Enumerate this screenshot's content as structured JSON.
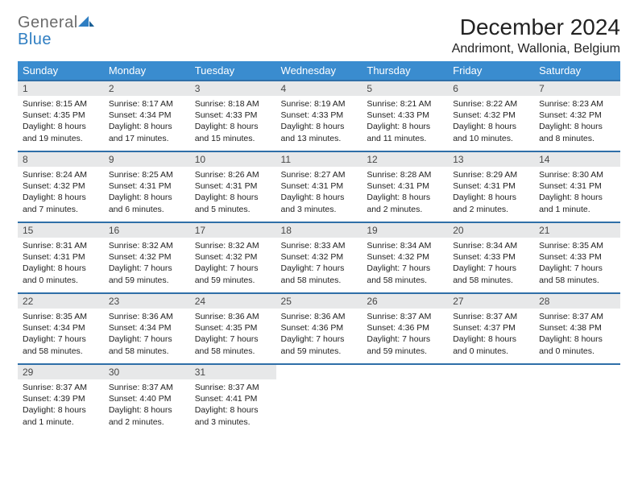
{
  "logo": {
    "general": "General",
    "blue": "Blue"
  },
  "title": "December 2024",
  "location": "Andrimont, Wallonia, Belgium",
  "colors": {
    "header_bg": "#3a8ccf",
    "header_text": "#ffffff",
    "daynum_bg": "#e7e8e9",
    "border": "#2f6fa8",
    "logo_gray": "#6b6b6b",
    "logo_blue": "#2f7ec2"
  },
  "weekdays": [
    "Sunday",
    "Monday",
    "Tuesday",
    "Wednesday",
    "Thursday",
    "Friday",
    "Saturday"
  ],
  "days": [
    {
      "n": "1",
      "sunrise": "Sunrise: 8:15 AM",
      "sunset": "Sunset: 4:35 PM",
      "daylight": "Daylight: 8 hours and 19 minutes."
    },
    {
      "n": "2",
      "sunrise": "Sunrise: 8:17 AM",
      "sunset": "Sunset: 4:34 PM",
      "daylight": "Daylight: 8 hours and 17 minutes."
    },
    {
      "n": "3",
      "sunrise": "Sunrise: 8:18 AM",
      "sunset": "Sunset: 4:33 PM",
      "daylight": "Daylight: 8 hours and 15 minutes."
    },
    {
      "n": "4",
      "sunrise": "Sunrise: 8:19 AM",
      "sunset": "Sunset: 4:33 PM",
      "daylight": "Daylight: 8 hours and 13 minutes."
    },
    {
      "n": "5",
      "sunrise": "Sunrise: 8:21 AM",
      "sunset": "Sunset: 4:33 PM",
      "daylight": "Daylight: 8 hours and 11 minutes."
    },
    {
      "n": "6",
      "sunrise": "Sunrise: 8:22 AM",
      "sunset": "Sunset: 4:32 PM",
      "daylight": "Daylight: 8 hours and 10 minutes."
    },
    {
      "n": "7",
      "sunrise": "Sunrise: 8:23 AM",
      "sunset": "Sunset: 4:32 PM",
      "daylight": "Daylight: 8 hours and 8 minutes."
    },
    {
      "n": "8",
      "sunrise": "Sunrise: 8:24 AM",
      "sunset": "Sunset: 4:32 PM",
      "daylight": "Daylight: 8 hours and 7 minutes."
    },
    {
      "n": "9",
      "sunrise": "Sunrise: 8:25 AM",
      "sunset": "Sunset: 4:31 PM",
      "daylight": "Daylight: 8 hours and 6 minutes."
    },
    {
      "n": "10",
      "sunrise": "Sunrise: 8:26 AM",
      "sunset": "Sunset: 4:31 PM",
      "daylight": "Daylight: 8 hours and 5 minutes."
    },
    {
      "n": "11",
      "sunrise": "Sunrise: 8:27 AM",
      "sunset": "Sunset: 4:31 PM",
      "daylight": "Daylight: 8 hours and 3 minutes."
    },
    {
      "n": "12",
      "sunrise": "Sunrise: 8:28 AM",
      "sunset": "Sunset: 4:31 PM",
      "daylight": "Daylight: 8 hours and 2 minutes."
    },
    {
      "n": "13",
      "sunrise": "Sunrise: 8:29 AM",
      "sunset": "Sunset: 4:31 PM",
      "daylight": "Daylight: 8 hours and 2 minutes."
    },
    {
      "n": "14",
      "sunrise": "Sunrise: 8:30 AM",
      "sunset": "Sunset: 4:31 PM",
      "daylight": "Daylight: 8 hours and 1 minute."
    },
    {
      "n": "15",
      "sunrise": "Sunrise: 8:31 AM",
      "sunset": "Sunset: 4:31 PM",
      "daylight": "Daylight: 8 hours and 0 minutes."
    },
    {
      "n": "16",
      "sunrise": "Sunrise: 8:32 AM",
      "sunset": "Sunset: 4:32 PM",
      "daylight": "Daylight: 7 hours and 59 minutes."
    },
    {
      "n": "17",
      "sunrise": "Sunrise: 8:32 AM",
      "sunset": "Sunset: 4:32 PM",
      "daylight": "Daylight: 7 hours and 59 minutes."
    },
    {
      "n": "18",
      "sunrise": "Sunrise: 8:33 AM",
      "sunset": "Sunset: 4:32 PM",
      "daylight": "Daylight: 7 hours and 58 minutes."
    },
    {
      "n": "19",
      "sunrise": "Sunrise: 8:34 AM",
      "sunset": "Sunset: 4:32 PM",
      "daylight": "Daylight: 7 hours and 58 minutes."
    },
    {
      "n": "20",
      "sunrise": "Sunrise: 8:34 AM",
      "sunset": "Sunset: 4:33 PM",
      "daylight": "Daylight: 7 hours and 58 minutes."
    },
    {
      "n": "21",
      "sunrise": "Sunrise: 8:35 AM",
      "sunset": "Sunset: 4:33 PM",
      "daylight": "Daylight: 7 hours and 58 minutes."
    },
    {
      "n": "22",
      "sunrise": "Sunrise: 8:35 AM",
      "sunset": "Sunset: 4:34 PM",
      "daylight": "Daylight: 7 hours and 58 minutes."
    },
    {
      "n": "23",
      "sunrise": "Sunrise: 8:36 AM",
      "sunset": "Sunset: 4:34 PM",
      "daylight": "Daylight: 7 hours and 58 minutes."
    },
    {
      "n": "24",
      "sunrise": "Sunrise: 8:36 AM",
      "sunset": "Sunset: 4:35 PM",
      "daylight": "Daylight: 7 hours and 58 minutes."
    },
    {
      "n": "25",
      "sunrise": "Sunrise: 8:36 AM",
      "sunset": "Sunset: 4:36 PM",
      "daylight": "Daylight: 7 hours and 59 minutes."
    },
    {
      "n": "26",
      "sunrise": "Sunrise: 8:37 AM",
      "sunset": "Sunset: 4:36 PM",
      "daylight": "Daylight: 7 hours and 59 minutes."
    },
    {
      "n": "27",
      "sunrise": "Sunrise: 8:37 AM",
      "sunset": "Sunset: 4:37 PM",
      "daylight": "Daylight: 8 hours and 0 minutes."
    },
    {
      "n": "28",
      "sunrise": "Sunrise: 8:37 AM",
      "sunset": "Sunset: 4:38 PM",
      "daylight": "Daylight: 8 hours and 0 minutes."
    },
    {
      "n": "29",
      "sunrise": "Sunrise: 8:37 AM",
      "sunset": "Sunset: 4:39 PM",
      "daylight": "Daylight: 8 hours and 1 minute."
    },
    {
      "n": "30",
      "sunrise": "Sunrise: 8:37 AM",
      "sunset": "Sunset: 4:40 PM",
      "daylight": "Daylight: 8 hours and 2 minutes."
    },
    {
      "n": "31",
      "sunrise": "Sunrise: 8:37 AM",
      "sunset": "Sunset: 4:41 PM",
      "daylight": "Daylight: 8 hours and 3 minutes."
    }
  ]
}
